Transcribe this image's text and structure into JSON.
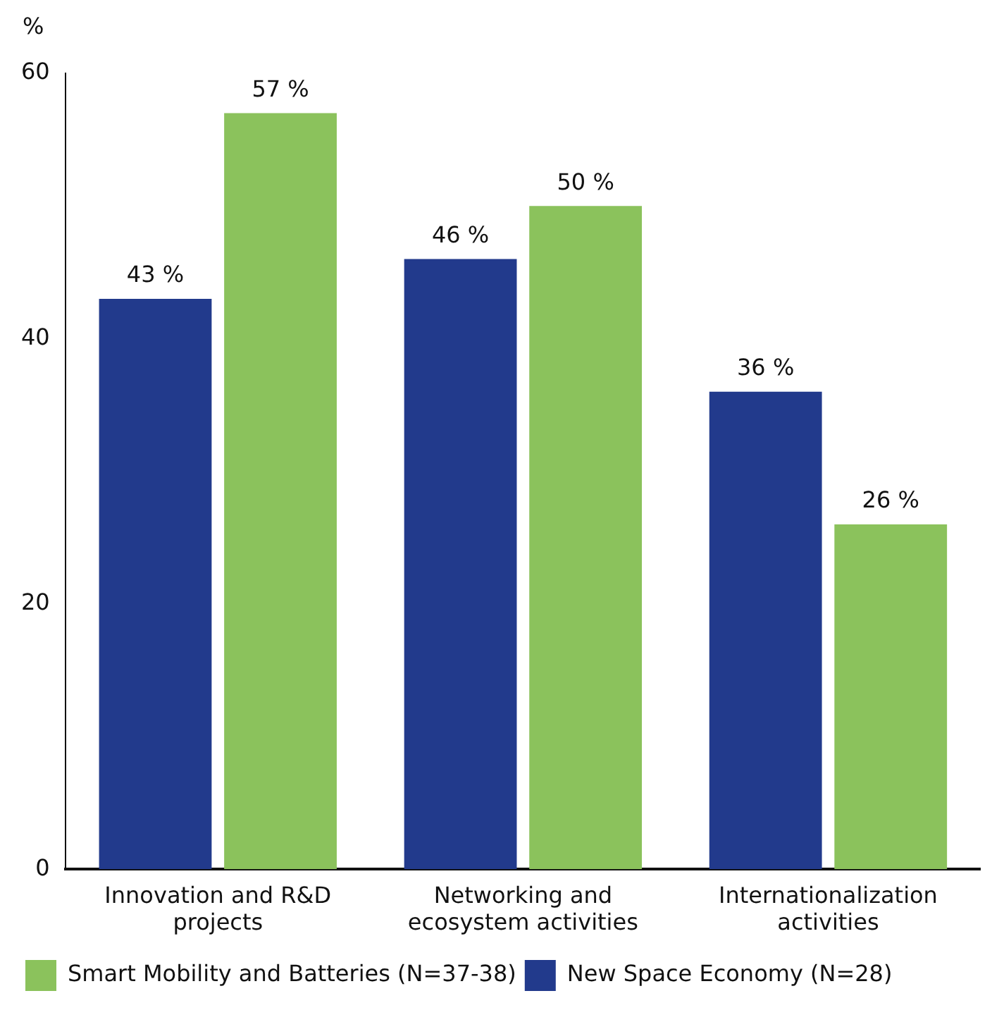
{
  "chart_data": {
    "type": "bar",
    "ylabel": "%",
    "categories": [
      "Innovation and R&D projects",
      "Networking and ecosystem activities",
      "Internationalization activities"
    ],
    "series": [
      {
        "name": "New Space Economy (N=28)",
        "color": "#223a8c",
        "values": [
          43,
          46,
          36
        ],
        "value_labels": [
          "43 %",
          "46 %",
          "36 %"
        ]
      },
      {
        "name": "Smart Mobility and Batteries (N=37-38)",
        "color": "#8bc25c",
        "values": [
          57,
          50,
          26
        ],
        "value_labels": [
          "57 %",
          "50 %",
          "26 %"
        ]
      }
    ],
    "ylim": [
      0,
      60
    ],
    "yticks": [
      0,
      20,
      40,
      60
    ],
    "grid": false,
    "legend": "bottom left"
  }
}
